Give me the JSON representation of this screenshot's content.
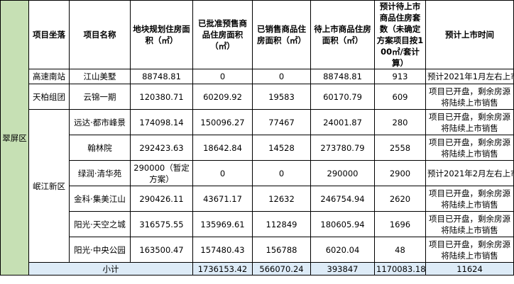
{
  "headers": {
    "location": "项目坐落",
    "name": "项目名称",
    "planned_area": "地块规划住房面积（㎡）",
    "approved_area": "已批准预售商品住房面积（㎡）",
    "sold_area": "已销售商品住房面积（㎡）",
    "pending_area": "待上市商品住房面积（㎡）",
    "expected_units": "预计待上市商品住房套数（未确定方案项目按100㎡/套计算）",
    "expected_time": "预计上市时间"
  },
  "district": "翠屏区",
  "subdistrict": "岷江新区",
  "rows": [
    {
      "location": "高速南站",
      "name": "江山美墅",
      "planned": "88748.81",
      "approved": "0",
      "sold": "0",
      "pending": "88748.81",
      "units": "913",
      "time": "预计2021年1月左右上市"
    },
    {
      "location": "天柏组团",
      "name": "云锦一期",
      "planned": "120380.71",
      "approved": "60209.92",
      "sold": "19583",
      "pending": "60170.79",
      "units": "609",
      "time": "项目已开盘，剩余房源将陆续上市销售"
    },
    {
      "name": "远达·都市峰景",
      "planned": "174098.14",
      "approved": "150096.27",
      "sold": "77467",
      "pending": "24001.87",
      "units": "280",
      "time": "项目已开盘，剩余房源将陆续上市销售"
    },
    {
      "name": "翰林院",
      "planned": "292423.63",
      "approved": "18642.84",
      "sold": "14528",
      "pending": "273780.79",
      "units": "2558",
      "time": "项目已开盘，剩余房源将陆续上市销售"
    },
    {
      "name": "绿润·清华苑",
      "planned": "290000（暂定方案）",
      "approved": "0",
      "sold": "0",
      "pending": "290000",
      "units": "2900",
      "time": "预计2021年2月左右上市"
    },
    {
      "name": "金科·集美江山",
      "planned": "290426.11",
      "approved": "43671.17",
      "sold": "12632",
      "pending": "246754.94",
      "units": "2620",
      "time": "项目已开盘，剩余房源将陆续上市销售"
    },
    {
      "name": "阳光·天空之城",
      "planned": "316575.55",
      "approved": "135969.61",
      "sold": "112849",
      "pending": "180605.94",
      "units": "1696",
      "time": "项目已开盘，剩余房源将陆续上市销售"
    },
    {
      "name": "阳光·中央公园",
      "planned": "163500.47",
      "approved": "157480.43",
      "sold": "156788",
      "pending": "6020.04",
      "units": "48",
      "time": "项目已开盘，剩余房源将陆续上市销售"
    }
  ],
  "total": {
    "label": "小计",
    "planned": "1736153.42",
    "approved": "566070.24",
    "sold": "393847",
    "pending": "1170083.18",
    "units": "11624"
  }
}
